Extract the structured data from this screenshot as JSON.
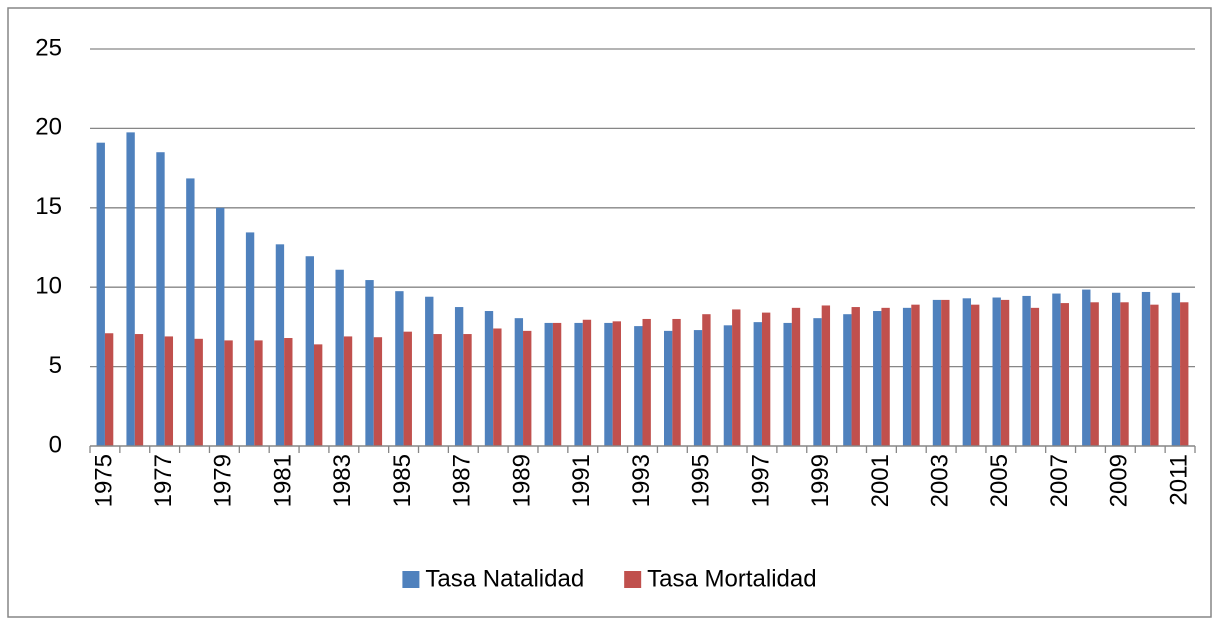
{
  "chart_data": {
    "type": "bar",
    "categories": [
      "1975",
      null,
      "1977",
      null,
      "1979",
      null,
      "1981",
      null,
      "1983",
      null,
      "1985",
      null,
      "1987",
      null,
      "1989",
      null,
      "1991",
      null,
      "1993",
      null,
      "1995",
      null,
      "1997",
      null,
      "1999",
      null,
      "2001",
      null,
      "2003",
      null,
      "2005",
      null,
      "2007",
      null,
      "2009",
      null,
      "2011"
    ],
    "series": [
      {
        "name": "Tasa Natalidad",
        "color": "#4f81bd",
        "values": [
          19.1,
          19.75,
          18.5,
          16.85,
          15.0,
          13.45,
          12.7,
          11.95,
          11.1,
          10.45,
          9.75,
          9.4,
          8.75,
          8.5,
          8.05,
          7.75,
          7.75,
          7.75,
          7.55,
          7.25,
          7.3,
          7.6,
          7.8,
          7.75,
          8.05,
          8.3,
          8.5,
          8.7,
          9.2,
          9.3,
          9.35,
          9.45,
          9.6,
          9.85,
          9.65,
          9.7,
          9.65
        ]
      },
      {
        "name": "Tasa Mortalidad",
        "color": "#c0504d",
        "values": [
          7.1,
          7.05,
          6.9,
          6.75,
          6.65,
          6.65,
          6.8,
          6.4,
          6.9,
          6.85,
          7.2,
          7.05,
          7.05,
          7.4,
          7.25,
          7.75,
          7.95,
          7.85,
          8.0,
          8.0,
          8.3,
          8.6,
          8.4,
          8.7,
          8.85,
          8.75,
          8.7,
          8.9,
          9.2,
          8.9,
          9.2,
          8.7,
          9.0,
          9.05,
          9.05,
          8.9,
          9.05
        ]
      }
    ],
    "ylim": [
      0,
      25
    ],
    "yticks": [
      0,
      5,
      10,
      15,
      20,
      25
    ],
    "grid": true,
    "legend": "bottom"
  }
}
